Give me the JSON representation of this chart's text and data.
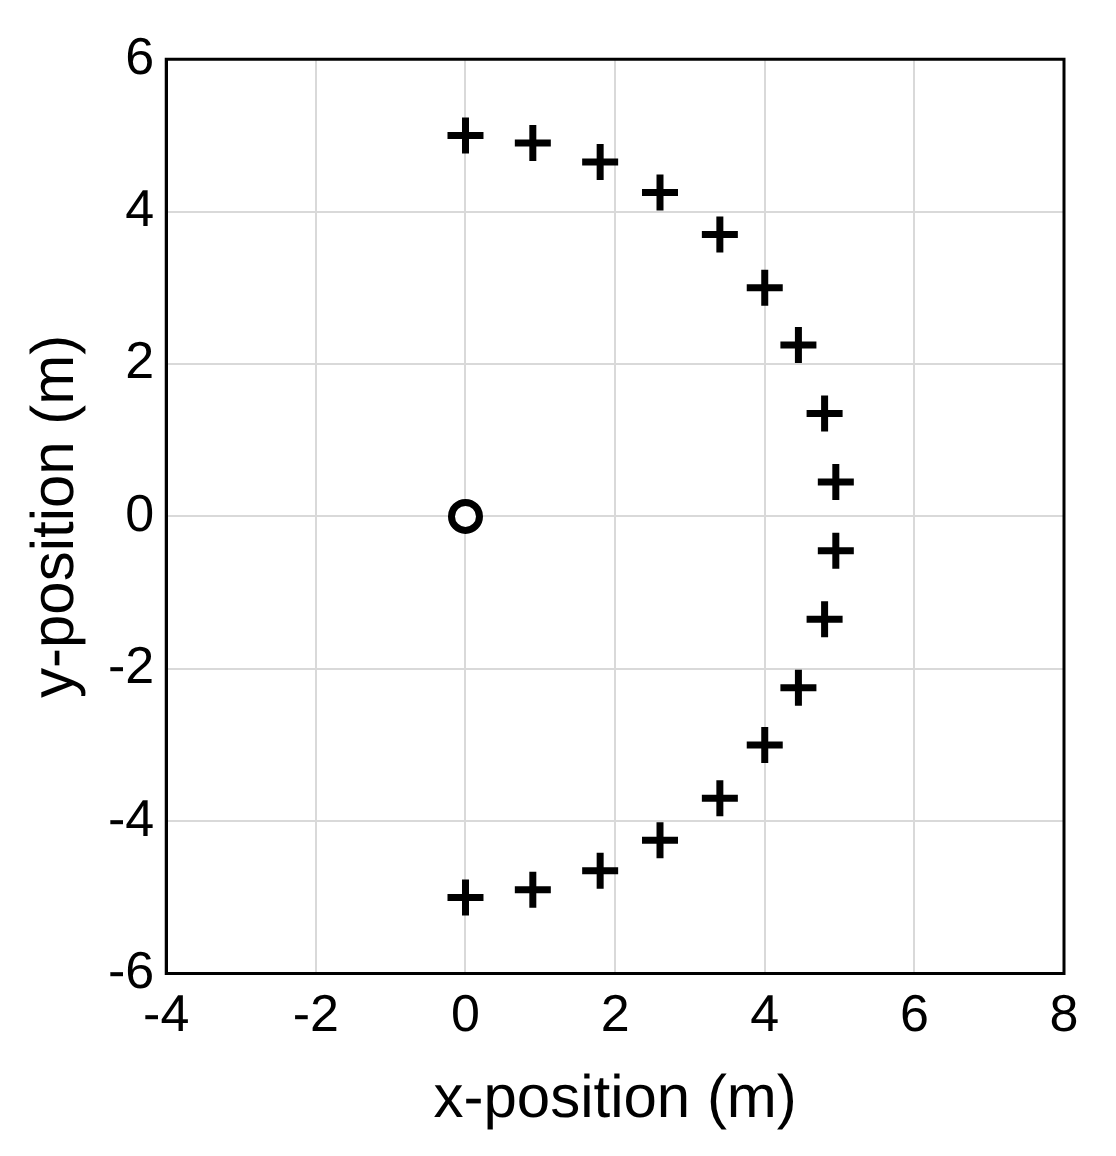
{
  "chart_data": {
    "type": "scatter",
    "xlabel": "x-position (m)",
    "ylabel": "y-position (m)",
    "xlim": [
      -4,
      8
    ],
    "xticks": [
      -4,
      -2,
      0,
      2,
      4,
      6,
      8
    ],
    "ylim": [
      -6,
      6
    ],
    "yticks": [
      -6,
      -4,
      -2,
      0,
      2,
      4,
      6
    ],
    "grid": true,
    "legend": false,
    "series": [
      {
        "color": "#000000",
        "marker": "cross",
        "x": [
          0,
          0.9,
          1.8,
          2.6,
          3.4,
          4.0,
          4.45,
          4.8,
          4.95,
          4.95,
          4.8,
          4.45,
          4.0,
          3.4,
          2.6,
          1.8,
          0.9,
          0
        ],
        "values": [
          5,
          4.9,
          4.65,
          4.25,
          3.7,
          3.0,
          2.25,
          1.35,
          0.45,
          -0.45,
          -1.35,
          -2.25,
          -3.0,
          -3.7,
          -4.25,
          -4.65,
          -4.9,
          -5
        ]
      },
      {
        "color": "#000000",
        "marker": "circle",
        "x": [
          0
        ],
        "values": [
          0
        ]
      }
    ]
  }
}
